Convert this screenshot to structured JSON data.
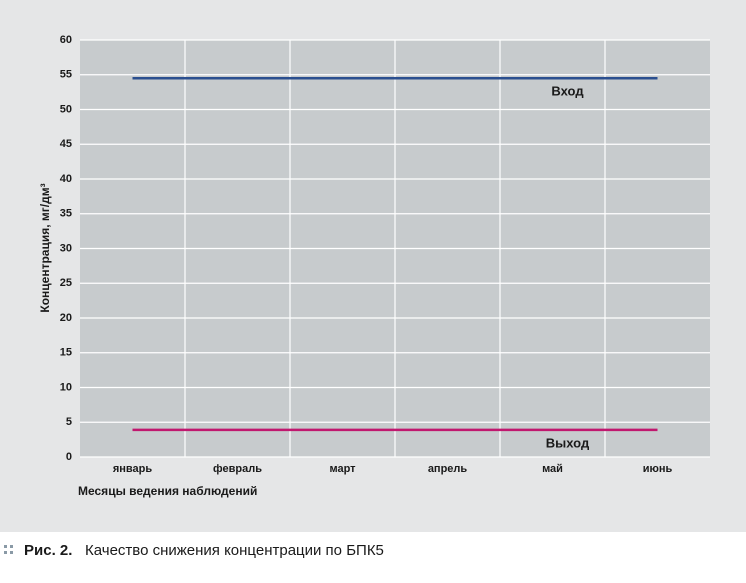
{
  "chart_data": {
    "type": "line",
    "y_label": "Концентрация, мг/дм³",
    "x_label": "Месяцы ведения наблюдений",
    "categories": [
      "январь",
      "февраль",
      "март",
      "апрель",
      "май",
      "июнь"
    ],
    "series": [
      {
        "name": "Вход",
        "color": "#2b4f8f",
        "values": [
          54.5,
          54.5,
          54.5,
          54.5,
          54.5,
          54.5
        ]
      },
      {
        "name": "Выход",
        "color": "#c0176e",
        "values": [
          3.9,
          3.9,
          3.9,
          3.9,
          3.9,
          3.9
        ]
      }
    ],
    "ylim": [
      0,
      60
    ],
    "yticks": [
      0,
      5,
      10,
      15,
      20,
      25,
      30,
      35,
      40,
      45,
      50,
      55,
      60
    ],
    "grid": true
  },
  "caption": {
    "label": "Рис. 2.",
    "text": "Качество снижения концентрации по БПК5"
  }
}
